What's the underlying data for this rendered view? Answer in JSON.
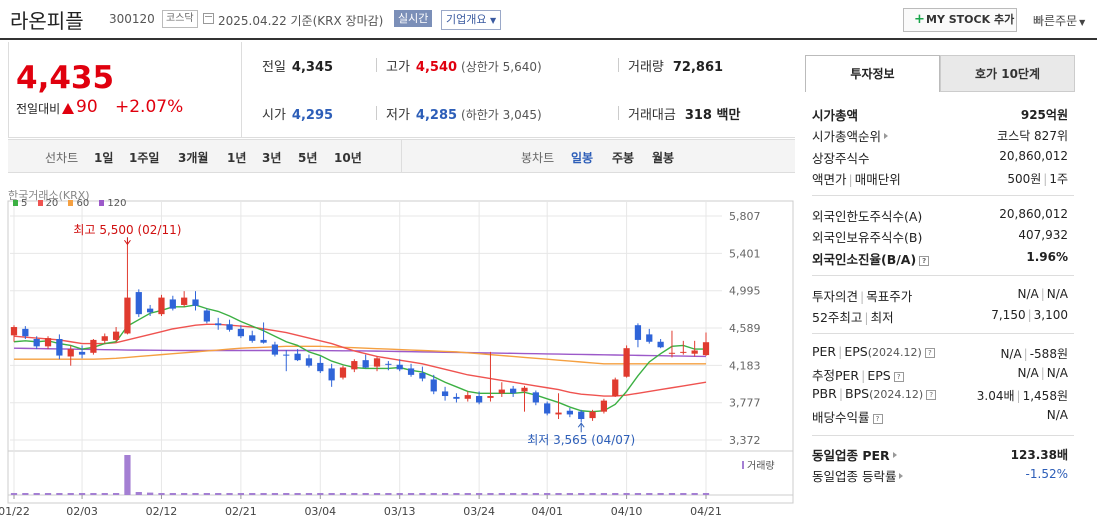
{
  "header": {
    "name": "라온피플",
    "code": "300120",
    "market": "코스닥",
    "date": "2025.04.22 기준(KRX 장마감)",
    "realtime": "실시간",
    "overview": "기업개요",
    "mystock": "MY STOCK 추가",
    "mystock_icon": "+",
    "quick_order": "빠른주문"
  },
  "price": {
    "current": "4,435",
    "change_label": "전일대비",
    "change_amount": "90",
    "change_pct": "+2.07%",
    "direction": "up",
    "up_color": "#e0000e",
    "down_color": "#2d5eb8"
  },
  "stats": {
    "prev_label": "전일",
    "prev": "4,345",
    "high_label": "고가",
    "high": "4,540",
    "upper_limit": "(상한가 5,640)",
    "volume_label": "거래량",
    "volume": "72,861",
    "open_label": "시가",
    "open": "4,295",
    "low_label": "저가",
    "low": "4,285",
    "lower_limit": "(하한가 3,045)",
    "amount_label": "거래대금",
    "amount": "318 백만"
  },
  "periods": {
    "line_label": "선차트",
    "line_opts": [
      "1일",
      "1주일",
      "3개월",
      "1년",
      "3년",
      "5년",
      "10년"
    ],
    "candle_label": "봉차트",
    "candle_opts": [
      "일봉",
      "주봉",
      "월봉"
    ],
    "candle_selected": "일봉"
  },
  "chart_data": {
    "type": "candlestick",
    "source": "한국거래소(KRX)",
    "legend": [
      {
        "name": "5",
        "color": "#3cb043"
      },
      {
        "name": "20",
        "color": "#ef5350"
      },
      {
        "name": "60",
        "color": "#f5a041"
      },
      {
        "name": "120",
        "color": "#9c59c9"
      }
    ],
    "y_ticks": [
      "5,807",
      "5,401",
      "4,995",
      "4,589",
      "4,183",
      "3,777",
      "3,372"
    ],
    "ylim": [
      3372,
      5807
    ],
    "x_ticks": [
      "01/22",
      "02/03",
      "02/12",
      "02/21",
      "03/04",
      "03/13",
      "03/24",
      "04/01",
      "04/10",
      "04/21"
    ],
    "x_tick_index": [
      0,
      6,
      13,
      20,
      27,
      34,
      41,
      47,
      54,
      61
    ],
    "high_annotation": "최고 5,500 (02/11)",
    "high_index": 10,
    "high_value": 5500,
    "low_annotation": "최저 3,565 (04/07)",
    "low_index": 50,
    "low_value": 3565,
    "volume_label": "거래량",
    "candles": [
      {
        "o": 4510,
        "h": 4620,
        "l": 4440,
        "c": 4600
      },
      {
        "o": 4580,
        "h": 4610,
        "l": 4470,
        "c": 4500
      },
      {
        "o": 4470,
        "h": 4500,
        "l": 4360,
        "c": 4390
      },
      {
        "o": 4390,
        "h": 4500,
        "l": 4360,
        "c": 4480
      },
      {
        "o": 4470,
        "h": 4520,
        "l": 4250,
        "c": 4290
      },
      {
        "o": 4280,
        "h": 4400,
        "l": 4180,
        "c": 4360
      },
      {
        "o": 4330,
        "h": 4400,
        "l": 4260,
        "c": 4300
      },
      {
        "o": 4320,
        "h": 4470,
        "l": 4300,
        "c": 4460
      },
      {
        "o": 4450,
        "h": 4530,
        "l": 4420,
        "c": 4500
      },
      {
        "o": 4460,
        "h": 4600,
        "l": 4440,
        "c": 4550
      },
      {
        "o": 4530,
        "h": 5500,
        "l": 4520,
        "c": 4920
      },
      {
        "o": 4980,
        "h": 5010,
        "l": 4710,
        "c": 4740
      },
      {
        "o": 4800,
        "h": 4840,
        "l": 4720,
        "c": 4760
      },
      {
        "o": 4740,
        "h": 4950,
        "l": 4720,
        "c": 4920
      },
      {
        "o": 4900,
        "h": 4940,
        "l": 4780,
        "c": 4800
      },
      {
        "o": 4840,
        "h": 4990,
        "l": 4820,
        "c": 4920
      },
      {
        "o": 4900,
        "h": 4990,
        "l": 4780,
        "c": 4830
      },
      {
        "o": 4780,
        "h": 4800,
        "l": 4640,
        "c": 4660
      },
      {
        "o": 4640,
        "h": 4700,
        "l": 4570,
        "c": 4620
      },
      {
        "o": 4630,
        "h": 4680,
        "l": 4550,
        "c": 4570
      },
      {
        "o": 4580,
        "h": 4620,
        "l": 4480,
        "c": 4500
      },
      {
        "o": 4510,
        "h": 4560,
        "l": 4430,
        "c": 4450
      },
      {
        "o": 4460,
        "h": 4650,
        "l": 4420,
        "c": 4430
      },
      {
        "o": 4410,
        "h": 4440,
        "l": 4280,
        "c": 4300
      },
      {
        "o": 4300,
        "h": 4350,
        "l": 4120,
        "c": 4290
      },
      {
        "o": 4310,
        "h": 4360,
        "l": 4230,
        "c": 4240
      },
      {
        "o": 4260,
        "h": 4300,
        "l": 4160,
        "c": 4180
      },
      {
        "o": 4210,
        "h": 4280,
        "l": 4100,
        "c": 4120
      },
      {
        "o": 4150,
        "h": 4200,
        "l": 3950,
        "c": 4020
      },
      {
        "o": 4050,
        "h": 4180,
        "l": 4030,
        "c": 4160
      },
      {
        "o": 4140,
        "h": 4250,
        "l": 4110,
        "c": 4230
      },
      {
        "o": 4240,
        "h": 4300,
        "l": 4150,
        "c": 4160
      },
      {
        "o": 4170,
        "h": 4280,
        "l": 4120,
        "c": 4260
      },
      {
        "o": 4200,
        "h": 4230,
        "l": 4130,
        "c": 4190
      },
      {
        "o": 4190,
        "h": 4250,
        "l": 4120,
        "c": 4140
      },
      {
        "o": 4150,
        "h": 4200,
        "l": 4060,
        "c": 4080
      },
      {
        "o": 4100,
        "h": 4170,
        "l": 4010,
        "c": 4040
      },
      {
        "o": 4030,
        "h": 4080,
        "l": 3870,
        "c": 3900
      },
      {
        "o": 3900,
        "h": 3950,
        "l": 3800,
        "c": 3850
      },
      {
        "o": 3840,
        "h": 3880,
        "l": 3780,
        "c": 3820
      },
      {
        "o": 3820,
        "h": 3900,
        "l": 3790,
        "c": 3860
      },
      {
        "o": 3850,
        "h": 3900,
        "l": 3760,
        "c": 3780
      },
      {
        "o": 3830,
        "h": 4330,
        "l": 3790,
        "c": 3850
      },
      {
        "o": 3880,
        "h": 4000,
        "l": 3840,
        "c": 3920
      },
      {
        "o": 3930,
        "h": 3960,
        "l": 3840,
        "c": 3880
      },
      {
        "o": 3900,
        "h": 3960,
        "l": 3680,
        "c": 3940
      },
      {
        "o": 3890,
        "h": 3910,
        "l": 3750,
        "c": 3780
      },
      {
        "o": 3770,
        "h": 3790,
        "l": 3640,
        "c": 3660
      },
      {
        "o": 3650,
        "h": 3880,
        "l": 3600,
        "c": 3670
      },
      {
        "o": 3690,
        "h": 3720,
        "l": 3620,
        "c": 3650
      },
      {
        "o": 3680,
        "h": 3700,
        "l": 3565,
        "c": 3600
      },
      {
        "o": 3610,
        "h": 3700,
        "l": 3580,
        "c": 3680
      },
      {
        "o": 3680,
        "h": 3820,
        "l": 3660,
        "c": 3800
      },
      {
        "o": 3850,
        "h": 4050,
        "l": 3840,
        "c": 4030
      },
      {
        "o": 4060,
        "h": 4400,
        "l": 4050,
        "c": 4370
      },
      {
        "o": 4620,
        "h": 4640,
        "l": 4380,
        "c": 4460
      },
      {
        "o": 4520,
        "h": 4580,
        "l": 4420,
        "c": 4440
      },
      {
        "o": 4440,
        "h": 4470,
        "l": 4370,
        "c": 4380
      },
      {
        "o": 4310,
        "h": 4560,
        "l": 4270,
        "c": 4320
      },
      {
        "o": 4320,
        "h": 4450,
        "l": 4300,
        "c": 4330
      },
      {
        "o": 4310,
        "h": 4450,
        "l": 4280,
        "c": 4345
      },
      {
        "o": 4295,
        "h": 4540,
        "l": 4285,
        "c": 4435
      }
    ],
    "ma5": [
      4440,
      4450,
      4440,
      4450,
      4420,
      4400,
      4360,
      4380,
      4420,
      4440,
      4610,
      4680,
      4750,
      4780,
      4820,
      4820,
      4840,
      4800,
      4770,
      4720,
      4660,
      4610,
      4560,
      4500,
      4440,
      4400,
      4330,
      4290,
      4230,
      4190,
      4160,
      4150,
      4150,
      4150,
      4160,
      4130,
      4110,
      4060,
      4000,
      3950,
      3900,
      3880,
      3880,
      3880,
      3880,
      3890,
      3860,
      3820,
      3780,
      3730,
      3690,
      3680,
      3690,
      3760,
      3900,
      4070,
      4220,
      4310,
      4390,
      4400,
      4360,
      4360
    ],
    "ma20": [
      4500,
      4490,
      4480,
      4470,
      4460,
      4440,
      4420,
      4420,
      4420,
      4430,
      4460,
      4490,
      4520,
      4550,
      4580,
      4600,
      4620,
      4630,
      4630,
      4620,
      4610,
      4600,
      4580,
      4560,
      4540,
      4510,
      4480,
      4450,
      4420,
      4380,
      4340,
      4310,
      4280,
      4260,
      4240,
      4220,
      4200,
      4170,
      4140,
      4110,
      4080,
      4060,
      4040,
      4020,
      4000,
      3980,
      3960,
      3940,
      3920,
      3890,
      3870,
      3860,
      3850,
      3850,
      3860,
      3880,
      3900,
      3920,
      3940,
      3960,
      3980,
      4000
    ],
    "ma60": [
      4250,
      4250,
      4250,
      4250,
      4250,
      4250,
      4250,
      4250,
      4255,
      4260,
      4270,
      4280,
      4290,
      4300,
      4310,
      4320,
      4330,
      4340,
      4350,
      4360,
      4370,
      4375,
      4380,
      4385,
      4390,
      4390,
      4390,
      4390,
      4385,
      4380,
      4375,
      4370,
      4365,
      4360,
      4355,
      4350,
      4345,
      4340,
      4335,
      4330,
      4320,
      4310,
      4300,
      4290,
      4280,
      4270,
      4260,
      4250,
      4240,
      4230,
      4220,
      4210,
      4200,
      4200,
      4200,
      4200,
      4200,
      4200,
      4200,
      4200,
      4200,
      4200
    ],
    "ma120": [
      4370,
      4368,
      4366,
      4364,
      4362,
      4360,
      4358,
      4356,
      4354,
      4352,
      4350,
      4349,
      4348,
      4347,
      4346,
      4345,
      4345,
      4345,
      4345,
      4345,
      4345,
      4345,
      4345,
      4345,
      4345,
      4345,
      4345,
      4344,
      4343,
      4342,
      4341,
      4340,
      4338,
      4336,
      4334,
      4332,
      4330,
      4328,
      4326,
      4324,
      4322,
      4320,
      4318,
      4316,
      4314,
      4312,
      4310,
      4308,
      4306,
      4304,
      4302,
      4300,
      4298,
      4296,
      4294,
      4292,
      4290,
      4288,
      4286,
      4284,
      4282,
      4280
    ],
    "volume": [
      1,
      1,
      1,
      1,
      1,
      1,
      1,
      1,
      1,
      1,
      20,
      1.5,
      1.2,
      1,
      1,
      1,
      1,
      1,
      1,
      1,
      1,
      1,
      1,
      1,
      1,
      1,
      1,
      1,
      1,
      1,
      1,
      1,
      1,
      1,
      1,
      1,
      1,
      1,
      1,
      1,
      1,
      1,
      1,
      1,
      1,
      1,
      1,
      1,
      1,
      1,
      1,
      1,
      1,
      1,
      1,
      1,
      1,
      1,
      1,
      1,
      1,
      1
    ],
    "colors": {
      "up": "#e03b2f",
      "down": "#2f64d8",
      "grid": "#e7e7e7",
      "volume": "#a47fd3"
    }
  },
  "info": {
    "tab_active": "투자정보",
    "tab_other": "호가 10단계",
    "rows": {
      "mktcap_label": "시가총액",
      "mktcap": "925억원",
      "mktcap_rank_label": "시가총액순위",
      "mktcap_rank": "코스닥 827위",
      "shares_label": "상장주식수",
      "shares": "20,860,012",
      "par_label": "액면가",
      "trade_unit_label": "매매단위",
      "par": "500원",
      "trade_unit": "1주",
      "foreign_limit_label": "외국인한도주식수(A)",
      "foreign_limit": "20,860,012",
      "foreign_hold_label": "외국인보유주식수(B)",
      "foreign_hold": "407,932",
      "foreign_ratio_label": "외국인소진율(B/A)",
      "foreign_ratio": "1.96%",
      "opinion_label": "투자의견",
      "target_label": "목표주가",
      "opinion": "N/A",
      "target": "N/A",
      "w52_label": "52주최고",
      "w52_low_label": "최저",
      "w52_high": "7,150",
      "w52_low": "3,100",
      "per_label": "PER",
      "eps_label": "EPS",
      "per_date": "(2024.12)",
      "per": "N/A",
      "eps": "-588원",
      "est_per_label": "추정PER",
      "est_eps_label": "EPS",
      "est_per": "N/A",
      "est_eps": "N/A",
      "pbr_label": "PBR",
      "bps_label": "BPS",
      "pbr_date": "(2024.12)",
      "pbr": "3.04배",
      "bps": "1,458원",
      "div_label": "배당수익률",
      "div": "N/A",
      "sector_per_label": "동일업종 PER",
      "sector_per": "123.38배",
      "sector_ret_label": "동일업종 등락률",
      "sector_ret": "-1.52%"
    }
  }
}
